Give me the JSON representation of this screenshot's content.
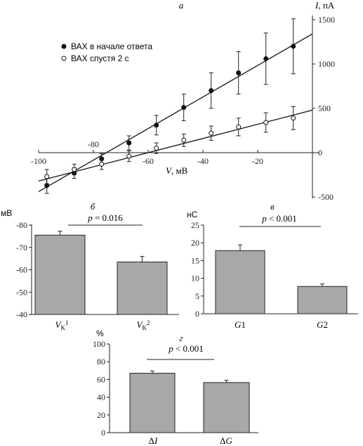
{
  "chart_data": [
    {
      "panel": "а",
      "type": "scatter",
      "xlabel_var": "V",
      "xlabel_unit": ", мВ",
      "ylabel_var": "I",
      "ylabel_unit": ", пА",
      "xlim": [
        -100,
        0
      ],
      "ylim": [
        -500,
        1500
      ],
      "xticks": [
        -100,
        -80,
        -60,
        -40,
        -20
      ],
      "yticks": [
        -500,
        0,
        500,
        1000,
        1500
      ],
      "series": [
        {
          "name": "ВАХ в начале ответа",
          "marker": "filled",
          "x": [
            -97,
            -87,
            -77,
            -67,
            -57,
            -47,
            -37,
            -27,
            -17,
            -7
          ],
          "y": [
            -370,
            -230,
            -70,
            110,
            310,
            510,
            700,
            900,
            1060,
            1200
          ],
          "err": [
            90,
            60,
            60,
            80,
            110,
            150,
            200,
            240,
            290,
            310
          ],
          "fit": [
            [
              -100,
              -440
            ],
            [
              0,
              1340
            ]
          ]
        },
        {
          "name": "ВАХ спустя 2 с",
          "marker": "open",
          "x": [
            -97,
            -87,
            -77,
            -67,
            -57,
            -47,
            -37,
            -27,
            -17,
            -7
          ],
          "y": [
            -270,
            -190,
            -130,
            -40,
            50,
            140,
            220,
            290,
            340,
            390
          ],
          "err": [
            80,
            60,
            60,
            60,
            60,
            70,
            80,
            100,
            110,
            130
          ],
          "fit": [
            [
              -100,
              -320
            ],
            [
              0,
              480
            ]
          ]
        }
      ]
    },
    {
      "panel": "б",
      "type": "bar",
      "unit": "мВ",
      "annotation": "p = 0.016",
      "categories": [
        {
          "var": "V",
          "sub": "K",
          "sup": "1"
        },
        {
          "var": "V",
          "sub": "K",
          "sup": "2"
        }
      ],
      "values": [
        -75.5,
        -63.5
      ],
      "errors": [
        1.8,
        2.5
      ],
      "ylim": [
        -40,
        -80
      ],
      "yticks": [
        -80,
        -70,
        -60,
        -50,
        -40
      ]
    },
    {
      "panel": "в",
      "type": "bar",
      "unit": "нС",
      "annotation": "p < 0.001",
      "categories": [
        {
          "var": "G",
          "sub": "1"
        },
        {
          "var": "G",
          "sub": "2"
        }
      ],
      "values": [
        17.8,
        7.7
      ],
      "errors": [
        1.6,
        0.7
      ],
      "ylim": [
        0,
        25
      ],
      "yticks": [
        0,
        5,
        10,
        15,
        20,
        25
      ]
    },
    {
      "panel": "г",
      "type": "bar",
      "unit": "%",
      "annotation": "p < 0.001",
      "categories": [
        {
          "pre": "Δ",
          "var": "I"
        },
        {
          "pre": "Δ",
          "var": "G"
        }
      ],
      "values": [
        67,
        56.5
      ],
      "errors": [
        2.5,
        2.5
      ],
      "ylim": [
        0,
        100
      ],
      "yticks": [
        0,
        20,
        40,
        60,
        80,
        100
      ]
    }
  ]
}
